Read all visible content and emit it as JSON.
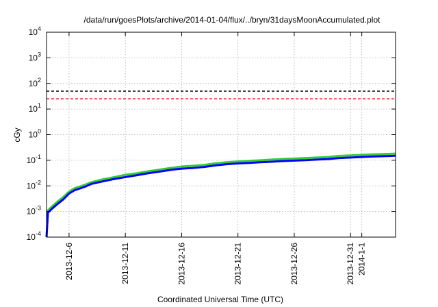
{
  "chart_data": {
    "type": "line",
    "title": "/data/run/goesPlots/archive/2014-01-04/flux/../bryn/31daysMoonAccumulated.plot",
    "xlabel": "Coordinated Universal Time (UTC)",
    "ylabel": "cGy",
    "yscale": "log",
    "ylim": [
      0.0001,
      10000
    ],
    "xlim": [
      "2013-12-04",
      "2014-01-04"
    ],
    "grid": true,
    "y_ticks": [
      {
        "value": 0.0001,
        "base": "10",
        "exp": "-4"
      },
      {
        "value": 0.001,
        "base": "10",
        "exp": "-3"
      },
      {
        "value": 0.01,
        "base": "10",
        "exp": "-2"
      },
      {
        "value": 0.1,
        "base": "10",
        "exp": "-1"
      },
      {
        "value": 1,
        "base": "10",
        "exp": "0"
      },
      {
        "value": 10,
        "base": "10",
        "exp": "1"
      },
      {
        "value": 100,
        "base": "10",
        "exp": "2"
      },
      {
        "value": 1000,
        "base": "10",
        "exp": "3"
      },
      {
        "value": 10000,
        "base": "10",
        "exp": "4"
      }
    ],
    "x_ticks": [
      {
        "value": "2013-12-06",
        "label": "2013-12-6"
      },
      {
        "value": "2013-12-11",
        "label": "2013-12-11"
      },
      {
        "value": "2013-12-16",
        "label": "2013-12-16"
      },
      {
        "value": "2013-12-21",
        "label": "2013-12-21"
      },
      {
        "value": "2013-12-26",
        "label": "2013-12-26"
      },
      {
        "value": "2013-12-31",
        "label": "2013-12-31"
      },
      {
        "value": "2014-01-01",
        "label": "2014-1-1"
      }
    ],
    "reference_lines": [
      {
        "y": 50,
        "color": "#000000",
        "style": "dashed"
      },
      {
        "y": 25,
        "color": "#ff0000",
        "style": "dashed"
      }
    ],
    "series": [
      {
        "color": "#33cc33",
        "x": [
          "2013-12-04",
          "2013-12-04 03:00",
          "2013-12-04 12:00",
          "2013-12-05",
          "2013-12-05 12:00",
          "2013-12-06",
          "2013-12-06 12:00",
          "2013-12-07",
          "2013-12-07 12:00",
          "2013-12-08",
          "2013-12-09",
          "2013-12-10",
          "2013-12-11",
          "2013-12-12",
          "2013-12-13",
          "2013-12-14",
          "2013-12-15",
          "2013-12-16",
          "2013-12-17",
          "2013-12-18",
          "2013-12-19",
          "2013-12-20",
          "2013-12-21",
          "2013-12-22",
          "2013-12-23",
          "2013-12-24",
          "2013-12-25",
          "2013-12-26",
          "2013-12-27",
          "2013-12-28",
          "2013-12-29",
          "2013-12-30",
          "2013-12-31",
          "2014-01-01",
          "2014-01-02",
          "2014-01-03",
          "2014-01-04"
        ],
        "values": [
          0.0001,
          0.0011,
          0.0016,
          0.0025,
          0.0037,
          0.006,
          0.0081,
          0.0095,
          0.0115,
          0.014,
          0.018,
          0.022,
          0.027,
          0.031,
          0.037,
          0.043,
          0.05,
          0.057,
          0.061,
          0.066,
          0.076,
          0.084,
          0.09,
          0.095,
          0.1,
          0.106,
          0.112,
          0.117,
          0.122,
          0.128,
          0.134,
          0.148,
          0.155,
          0.163,
          0.17,
          0.176,
          0.182
        ]
      },
      {
        "color": "#0000ff",
        "x": [
          "2013-12-04",
          "2013-12-04 03:00",
          "2013-12-04 12:00",
          "2013-12-05",
          "2013-12-05 12:00",
          "2013-12-06",
          "2013-12-06 12:00",
          "2013-12-07",
          "2013-12-07 12:00",
          "2013-12-08",
          "2013-12-09",
          "2013-12-10",
          "2013-12-11",
          "2013-12-12",
          "2013-12-13",
          "2013-12-14",
          "2013-12-15",
          "2013-12-16",
          "2013-12-17",
          "2013-12-18",
          "2013-12-19",
          "2013-12-20",
          "2013-12-21",
          "2013-12-22",
          "2013-12-23",
          "2013-12-24",
          "2013-12-25",
          "2013-12-26",
          "2013-12-27",
          "2013-12-28",
          "2013-12-29",
          "2013-12-30",
          "2013-12-31",
          "2014-01-01",
          "2014-01-02",
          "2014-01-03",
          "2014-01-04"
        ],
        "values": [
          0.0001,
          0.0009,
          0.0013,
          0.002,
          0.003,
          0.005,
          0.0068,
          0.008,
          0.0096,
          0.012,
          0.015,
          0.0185,
          0.022,
          0.026,
          0.031,
          0.036,
          0.042,
          0.047,
          0.05,
          0.055,
          0.063,
          0.07,
          0.075,
          0.079,
          0.084,
          0.088,
          0.093,
          0.097,
          0.101,
          0.106,
          0.111,
          0.122,
          0.128,
          0.134,
          0.14,
          0.145,
          0.15
        ]
      }
    ]
  }
}
